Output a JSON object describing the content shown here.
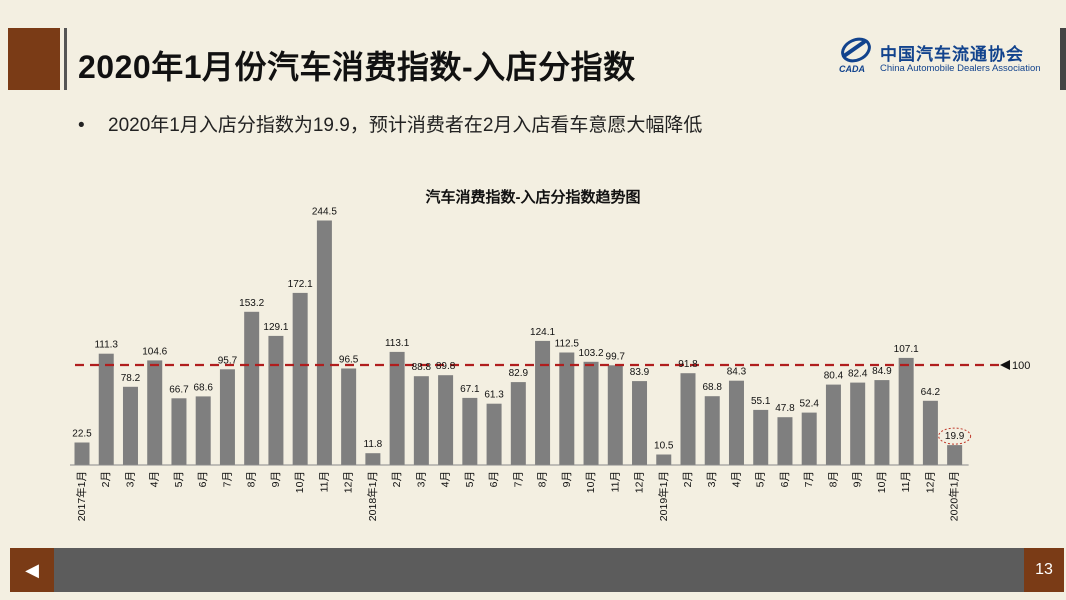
{
  "header": {
    "title": "2020年1月份汽车消费指数-入店分指数",
    "logo_cn": "中国汽车流通协会",
    "logo_en": "China Automobile Dealers Association",
    "logo_mark": "CADA"
  },
  "bullet": {
    "symbol": "•",
    "text": "2020年1月入店分指数为19.9，预计消费者在2月入店看车意愿大幅降低"
  },
  "footer": {
    "prev_icon": "◀",
    "page_number": "13"
  },
  "colors": {
    "bar": "#7f7f7f",
    "reference_line": "#b01e1e",
    "brand_brown": "#7a3b16",
    "logo_blue": "#12438d"
  },
  "chart_data": {
    "type": "bar",
    "title": "汽车消费指数-入店分指数趋势图",
    "categories": [
      "2017年1月",
      "2月",
      "3月",
      "4月",
      "5月",
      "6月",
      "7月",
      "8月",
      "9月",
      "10月",
      "11月",
      "12月",
      "2018年1月",
      "2月",
      "3月",
      "4月",
      "5月",
      "6月",
      "7月",
      "8月",
      "9月",
      "10月",
      "11月",
      "12月",
      "2019年1月",
      "2月",
      "3月",
      "4月",
      "5月",
      "6月",
      "7月",
      "8月",
      "9月",
      "10月",
      "11月",
      "12月",
      "2020年1月"
    ],
    "values": [
      22.5,
      111.3,
      78.2,
      104.6,
      66.7,
      68.6,
      95.7,
      153.2,
      129.1,
      172.1,
      244.5,
      96.5,
      11.8,
      113.1,
      88.8,
      89.8,
      67.1,
      61.3,
      82.9,
      124.1,
      112.5,
      103.2,
      99.7,
      83.9,
      10.5,
      91.8,
      68.8,
      84.3,
      55.1,
      47.8,
      52.4,
      80.4,
      82.4,
      84.9,
      107.1,
      64.2,
      19.9
    ],
    "reference_line": {
      "value": 100,
      "label": "100"
    },
    "highlight_index": 36,
    "ylim": [
      0,
      260
    ],
    "xlabel": "",
    "ylabel": ""
  }
}
